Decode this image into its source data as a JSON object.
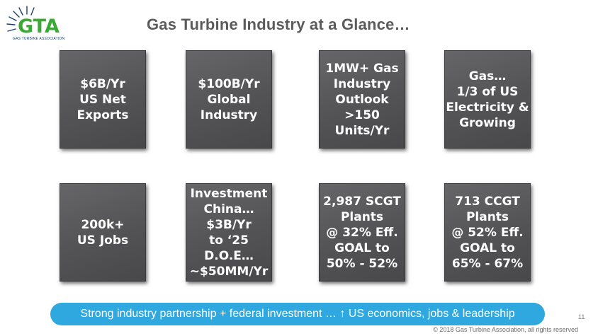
{
  "logo": {
    "text": "GTA",
    "tagline": "GAS TURBINE ASSOCIATION"
  },
  "title": "Gas Turbine Industry at a Glance…",
  "tiles": [
    {
      "text": "$6B/Yr\nUS Net\nExports"
    },
    {
      "text": "$100B/Yr\nGlobal\nIndustry"
    },
    {
      "text": "1MW+ Gas\nIndustry\nOutlook\n>150\nUnits/Yr"
    },
    {
      "text": "Gas…\n1/3 of US\nElectricity &\nGrowing"
    },
    {
      "text": "200k+\nUS Jobs"
    },
    {
      "text": "Investment\nChina…\n$3B/Yr\nto ‘25\nD.O.E…\n~$50MM/Yr"
    },
    {
      "text": "2,987 SCGT\nPlants\n@ 32% Eff.\nGOAL to\n50% - 52%"
    },
    {
      "text": "713 CCGT\nPlants\n@  52% Eff.\nGOAL to\n65% - 67%"
    }
  ],
  "banner": {
    "text": "Strong industry partnership + federal investment … ↑ US economics, jobs & leadership"
  },
  "page_number": "11",
  "copyright": "© 2018 Gas Turbine Association, all rights reserved",
  "colors": {
    "accent": "#2fa8df",
    "tile": "#57575a",
    "title": "#5b5b5b",
    "logo_green": "#3aa935",
    "logo_navy": "#1a3f6e"
  }
}
